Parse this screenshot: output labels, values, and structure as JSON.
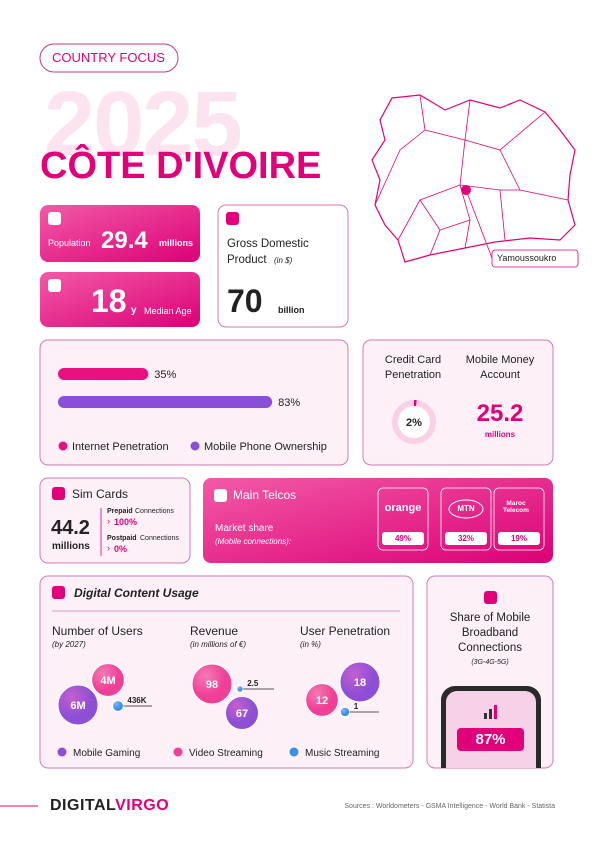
{
  "header": {
    "tag": "COUNTRY FOCUS",
    "year": "2025",
    "country": "CÔTE D'IVOIRE"
  },
  "map": {
    "city": "Yamoussoukro"
  },
  "population": {
    "label": "Population",
    "value": "29.4",
    "unit": "millions"
  },
  "median_age": {
    "value": "18",
    "unit": "y",
    "label": "Median Age"
  },
  "gdp": {
    "label": "Gross Domestic Product",
    "note": "(in $)",
    "value": "70",
    "unit": "billion"
  },
  "penetration": {
    "bars": [
      {
        "name": "Internet Penetration",
        "value": 35,
        "label": "35%",
        "color": "#e8117f"
      },
      {
        "name": "Mobile Phone Ownership",
        "value": 83,
        "label": "83%",
        "color": "#8a4fd8"
      }
    ]
  },
  "credit_card": {
    "label": "Credit Card Penetration",
    "value": 2,
    "value_label": "2%",
    "color": "#e2007a"
  },
  "mobile_money": {
    "label": "Mobile Money Account",
    "value": "25.2",
    "unit": "millions"
  },
  "sim_cards": {
    "title": "Sim Cards",
    "value": "44.2",
    "unit": "millions",
    "prepaid": {
      "label": "Prepaid",
      "suffix": "Connections",
      "value": "100%"
    },
    "postpaid": {
      "label": "Postpaid",
      "suffix": "Connections",
      "value": "0%"
    }
  },
  "telcos": {
    "title": "Main Telcos",
    "subtitle": "Market share",
    "note": "(Mobile connections):",
    "items": [
      {
        "name": "orange",
        "share": "49%"
      },
      {
        "name": "MTN",
        "share": "32%"
      },
      {
        "name": "Maroc Telecom",
        "share": "19%"
      }
    ]
  },
  "digital_content": {
    "title": "Digital Content Usage",
    "series": [
      {
        "name": "Mobile Gaming",
        "color": "#8e4fd6"
      },
      {
        "name": "Video Streaming",
        "color": "#ef3f96"
      },
      {
        "name": "Music Streaming",
        "color": "#3a8ee6"
      }
    ],
    "groups": [
      {
        "title": "Number of Users",
        "note": "(by 2027)",
        "values": [
          6000000,
          4000000,
          436000
        ],
        "value_labels": [
          "6M",
          "4M",
          "436K"
        ]
      },
      {
        "title": "Revenue",
        "note": "(in millions of €)",
        "values": [
          67,
          98,
          2.5
        ]
      },
      {
        "title": "User Penetration",
        "note": "(in %)",
        "values": [
          18,
          12,
          1
        ]
      }
    ]
  },
  "broadband": {
    "title": "Share of Mobile Broadband Connections",
    "note": "(3G-4G-5G)",
    "value": "87%"
  },
  "footer": {
    "brand_a": "DIGITAL",
    "brand_b": "VIRGO",
    "sources": "Sources : Worldometers - GSMA Intelligence - World Bank - Statista"
  }
}
